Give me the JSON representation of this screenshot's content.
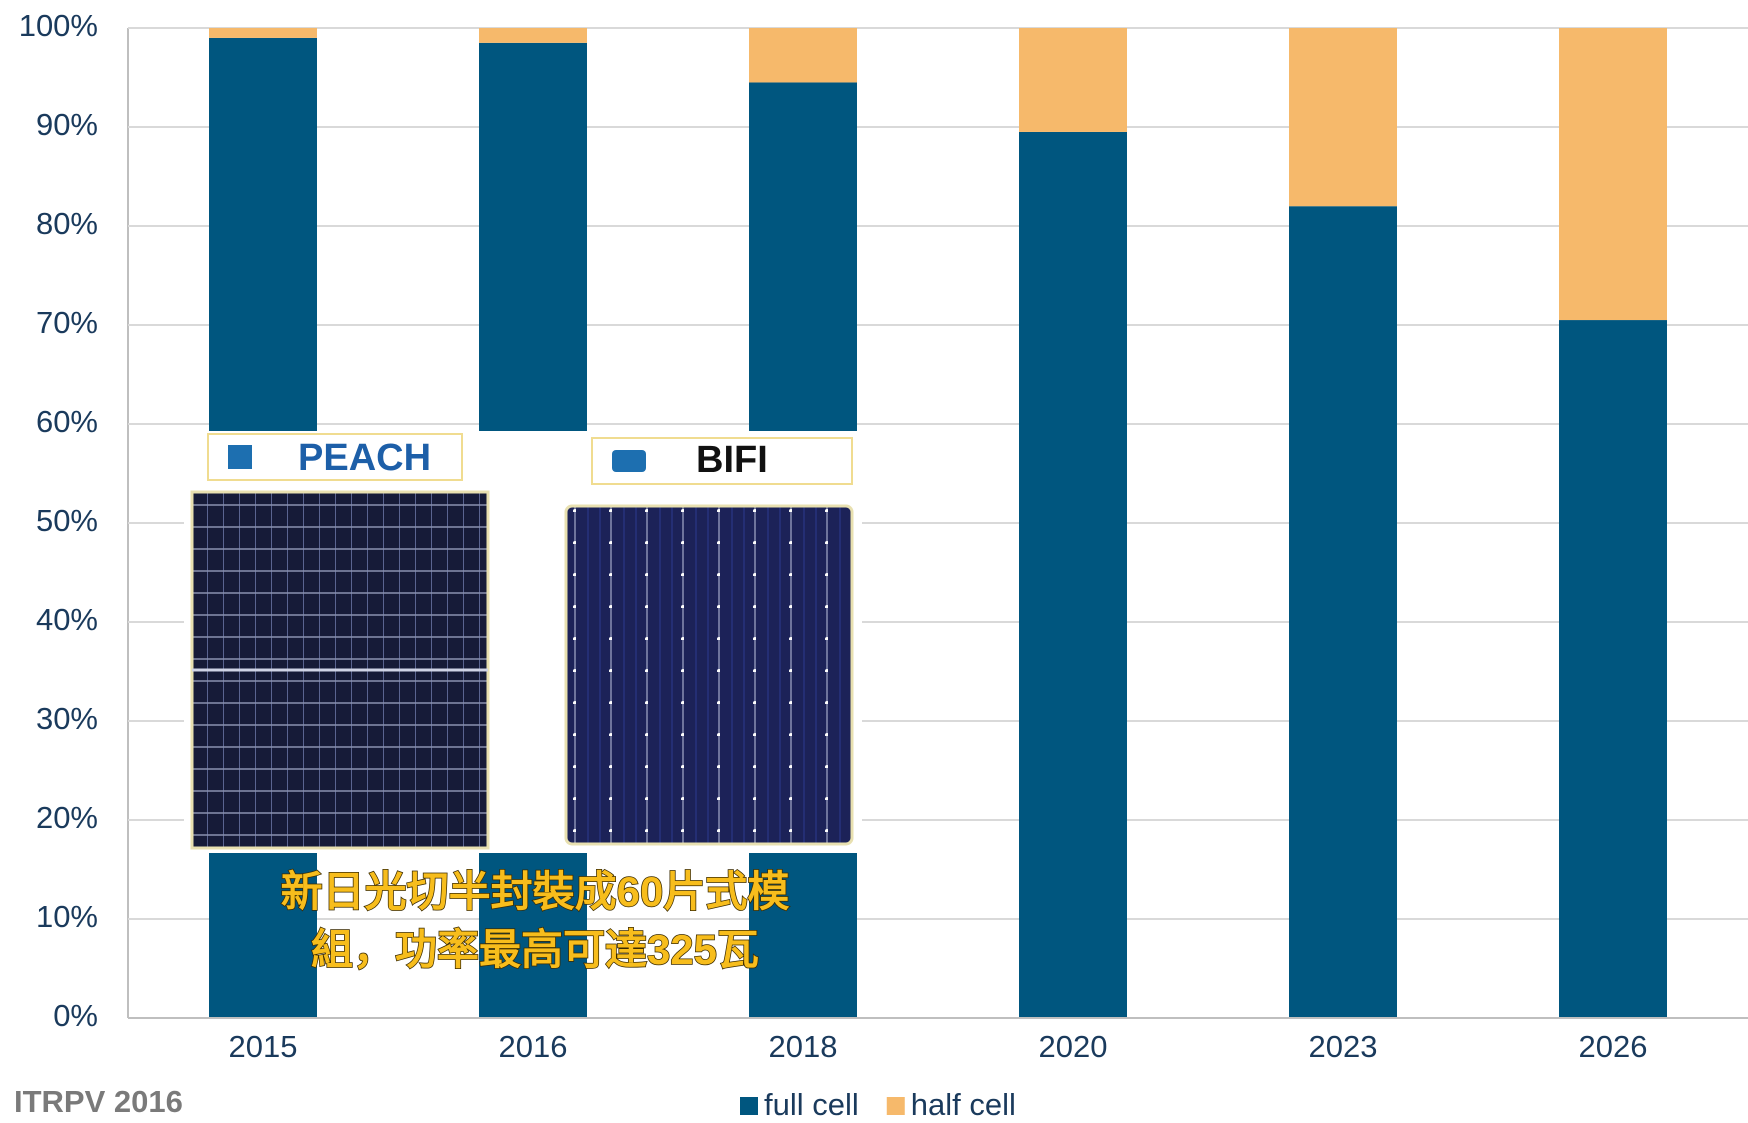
{
  "chart_data": {
    "type": "bar",
    "stacked": true,
    "categories": [
      "2015",
      "2016",
      "2018",
      "2020",
      "2023",
      "2026"
    ],
    "series": [
      {
        "name": "full cell",
        "color": "#00567f",
        "values": [
          99,
          98.5,
          94.5,
          89.5,
          82,
          70.5
        ]
      },
      {
        "name": "half cell",
        "color": "#f6b96b",
        "values": [
          1,
          1.5,
          5.5,
          10.5,
          18,
          29.5
        ]
      }
    ],
    "ylim": [
      0,
      100
    ],
    "yticks": [
      {
        "value": 0,
        "label": "0%"
      },
      {
        "value": 10,
        "label": "10%"
      },
      {
        "value": 20,
        "label": "20%"
      },
      {
        "value": 30,
        "label": "30%"
      },
      {
        "value": 40,
        "label": "40%"
      },
      {
        "value": 50,
        "label": "50%"
      },
      {
        "value": 60,
        "label": "60%"
      },
      {
        "value": 70,
        "label": "70%"
      },
      {
        "value": 80,
        "label": "80%"
      },
      {
        "value": 90,
        "label": "90%"
      },
      {
        "value": 100,
        "label": "100%"
      }
    ],
    "grid": true,
    "legend": "bottom",
    "source": "ITRPV 2016",
    "inset": {
      "labels": [
        "PEACH",
        "BIFI"
      ],
      "caption": [
        "新日光切半封裝成60片式模",
        "組，功率最高可達325瓦"
      ]
    }
  }
}
